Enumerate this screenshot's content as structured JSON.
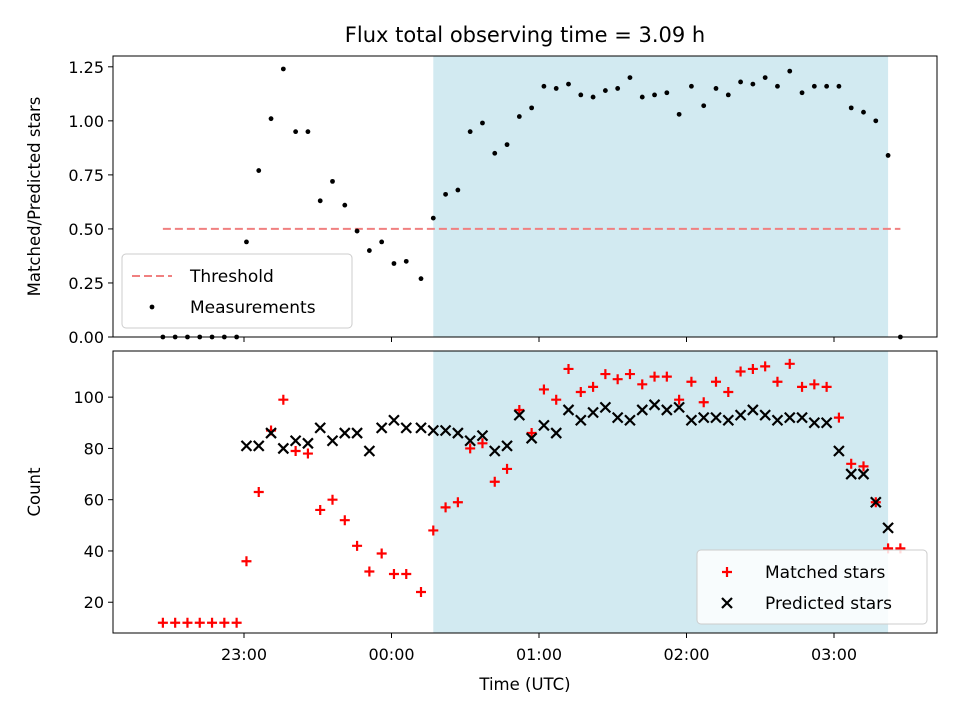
{
  "chart_data": {
    "title": "Flux total observing time = 3.09 h",
    "xlabel": "Time (UTC)",
    "xticks": [
      "23:00",
      "00:00",
      "01:00",
      "02:00",
      "03:00"
    ],
    "observing_window": {
      "start": "00:17",
      "end": "03:22",
      "color": "#add8e6"
    },
    "panels": [
      {
        "type": "scatter",
        "ylabel": "Matched/Predicted stars",
        "ylim": [
          0,
          1.3
        ],
        "yticks": [
          "0.00",
          "0.25",
          "0.50",
          "0.75",
          "1.00",
          "1.25"
        ],
        "threshold": {
          "name": "Threshold",
          "value": 0.5,
          "x_start": "22:27",
          "x_end": "03:27",
          "color": "#f08080"
        },
        "legend_position": "lower-left",
        "series": [
          {
            "name": "Measurements",
            "marker": "dot",
            "color": "#000000",
            "points": [
              [
                "22:27",
                0
              ],
              [
                "22:32",
                0
              ],
              [
                "22:37",
                0
              ],
              [
                "22:42",
                0
              ],
              [
                "22:47",
                0
              ],
              [
                "22:52",
                0
              ],
              [
                "22:57",
                0
              ],
              [
                "23:01",
                0.44
              ],
              [
                "23:06",
                0.77
              ],
              [
                "23:11",
                1.01
              ],
              [
                "23:16",
                1.24
              ],
              [
                "23:21",
                0.95
              ],
              [
                "23:26",
                0.95
              ],
              [
                "23:31",
                0.63
              ],
              [
                "23:36",
                0.72
              ],
              [
                "23:41",
                0.61
              ],
              [
                "23:46",
                0.49
              ],
              [
                "23:51",
                0.4
              ],
              [
                "23:56",
                0.44
              ],
              [
                "00:01",
                0.34
              ],
              [
                "00:06",
                0.35
              ],
              [
                "00:12",
                0.27
              ],
              [
                "00:17",
                0.55
              ],
              [
                "00:22",
                0.66
              ],
              [
                "00:27",
                0.68
              ],
              [
                "00:32",
                0.95
              ],
              [
                "00:37",
                0.99
              ],
              [
                "00:42",
                0.85
              ],
              [
                "00:47",
                0.89
              ],
              [
                "00:52",
                1.02
              ],
              [
                "00:57",
                1.06
              ],
              [
                "01:02",
                1.16
              ],
              [
                "01:07",
                1.15
              ],
              [
                "01:12",
                1.17
              ],
              [
                "01:17",
                1.12
              ],
              [
                "01:22",
                1.11
              ],
              [
                "01:27",
                1.14
              ],
              [
                "01:32",
                1.15
              ],
              [
                "01:37",
                1.2
              ],
              [
                "01:42",
                1.11
              ],
              [
                "01:47",
                1.12
              ],
              [
                "01:52",
                1.13
              ],
              [
                "01:57",
                1.03
              ],
              [
                "02:02",
                1.16
              ],
              [
                "02:07",
                1.07
              ],
              [
                "02:12",
                1.15
              ],
              [
                "02:17",
                1.12
              ],
              [
                "02:22",
                1.18
              ],
              [
                "02:27",
                1.17
              ],
              [
                "02:32",
                1.2
              ],
              [
                "02:37",
                1.16
              ],
              [
                "02:42",
                1.23
              ],
              [
                "02:47",
                1.13
              ],
              [
                "02:52",
                1.16
              ],
              [
                "02:57",
                1.16
              ],
              [
                "03:02",
                1.16
              ],
              [
                "03:07",
                1.06
              ],
              [
                "03:12",
                1.04
              ],
              [
                "03:17",
                1.0
              ],
              [
                "03:22",
                0.84
              ],
              [
                "03:27",
                0
              ]
            ]
          }
        ]
      },
      {
        "type": "scatter",
        "ylabel": "Count",
        "ylim": [
          8,
          118
        ],
        "yticks": [
          "20",
          "40",
          "60",
          "80",
          "100"
        ],
        "legend_position": "lower-right",
        "series": [
          {
            "name": "Matched stars",
            "marker": "plus",
            "color": "#ff0000",
            "points": [
              [
                "22:27",
                12
              ],
              [
                "22:32",
                12
              ],
              [
                "22:37",
                12
              ],
              [
                "22:42",
                12
              ],
              [
                "22:47",
                12
              ],
              [
                "22:52",
                12
              ],
              [
                "22:57",
                12
              ],
              [
                "23:01",
                36
              ],
              [
                "23:06",
                63
              ],
              [
                "23:11",
                87
              ],
              [
                "23:16",
                99
              ],
              [
                "23:21",
                79
              ],
              [
                "23:26",
                78
              ],
              [
                "23:31",
                56
              ],
              [
                "23:36",
                60
              ],
              [
                "23:41",
                52
              ],
              [
                "23:46",
                42
              ],
              [
                "23:51",
                32
              ],
              [
                "23:56",
                39
              ],
              [
                "00:01",
                31
              ],
              [
                "00:06",
                31
              ],
              [
                "00:12",
                24
              ],
              [
                "00:17",
                48
              ],
              [
                "00:22",
                57
              ],
              [
                "00:27",
                59
              ],
              [
                "00:32",
                80
              ],
              [
                "00:37",
                82
              ],
              [
                "00:42",
                67
              ],
              [
                "00:47",
                72
              ],
              [
                "00:52",
                95
              ],
              [
                "00:57",
                86
              ],
              [
                "01:02",
                103
              ],
              [
                "01:07",
                99
              ],
              [
                "01:12",
                111
              ],
              [
                "01:17",
                102
              ],
              [
                "01:22",
                104
              ],
              [
                "01:27",
                109
              ],
              [
                "01:32",
                107
              ],
              [
                "01:37",
                109
              ],
              [
                "01:42",
                105
              ],
              [
                "01:47",
                108
              ],
              [
                "01:52",
                108
              ],
              [
                "01:57",
                99
              ],
              [
                "02:02",
                106
              ],
              [
                "02:07",
                98
              ],
              [
                "02:12",
                106
              ],
              [
                "02:17",
                102
              ],
              [
                "02:22",
                110
              ],
              [
                "02:27",
                111
              ],
              [
                "02:32",
                112
              ],
              [
                "02:37",
                106
              ],
              [
                "02:42",
                113
              ],
              [
                "02:47",
                104
              ],
              [
                "02:52",
                105
              ],
              [
                "02:57",
                104
              ],
              [
                "03:02",
                92
              ],
              [
                "03:07",
                74
              ],
              [
                "03:12",
                73
              ],
              [
                "03:17",
                59
              ],
              [
                "03:22",
                41
              ],
              [
                "03:27",
                41
              ]
            ]
          },
          {
            "name": "Predicted stars",
            "marker": "x",
            "color": "#000000",
            "points": [
              [
                "23:01",
                81
              ],
              [
                "23:06",
                81
              ],
              [
                "23:11",
                86
              ],
              [
                "23:16",
                80
              ],
              [
                "23:21",
                83
              ],
              [
                "23:26",
                82
              ],
              [
                "23:31",
                88
              ],
              [
                "23:36",
                83
              ],
              [
                "23:41",
                86
              ],
              [
                "23:46",
                86
              ],
              [
                "23:51",
                79
              ],
              [
                "23:56",
                88
              ],
              [
                "00:01",
                91
              ],
              [
                "00:06",
                88
              ],
              [
                "00:12",
                88
              ],
              [
                "00:17",
                87
              ],
              [
                "00:22",
                87
              ],
              [
                "00:27",
                86
              ],
              [
                "00:32",
                83
              ],
              [
                "00:37",
                85
              ],
              [
                "00:42",
                79
              ],
              [
                "00:47",
                81
              ],
              [
                "00:52",
                93
              ],
              [
                "00:57",
                84
              ],
              [
                "01:02",
                89
              ],
              [
                "01:07",
                86
              ],
              [
                "01:12",
                95
              ],
              [
                "01:17",
                91
              ],
              [
                "01:22",
                94
              ],
              [
                "01:27",
                96
              ],
              [
                "01:32",
                92
              ],
              [
                "01:37",
                91
              ],
              [
                "01:42",
                95
              ],
              [
                "01:47",
                97
              ],
              [
                "01:52",
                95
              ],
              [
                "01:57",
                96
              ],
              [
                "02:02",
                91
              ],
              [
                "02:07",
                92
              ],
              [
                "02:12",
                92
              ],
              [
                "02:17",
                91
              ],
              [
                "02:22",
                93
              ],
              [
                "02:27",
                95
              ],
              [
                "02:32",
                93
              ],
              [
                "02:37",
                91
              ],
              [
                "02:42",
                92
              ],
              [
                "02:47",
                92
              ],
              [
                "02:52",
                90
              ],
              [
                "02:57",
                90
              ],
              [
                "03:02",
                79
              ],
              [
                "03:07",
                70
              ],
              [
                "03:12",
                70
              ],
              [
                "03:17",
                59
              ],
              [
                "03:22",
                49
              ]
            ]
          }
        ]
      }
    ]
  }
}
